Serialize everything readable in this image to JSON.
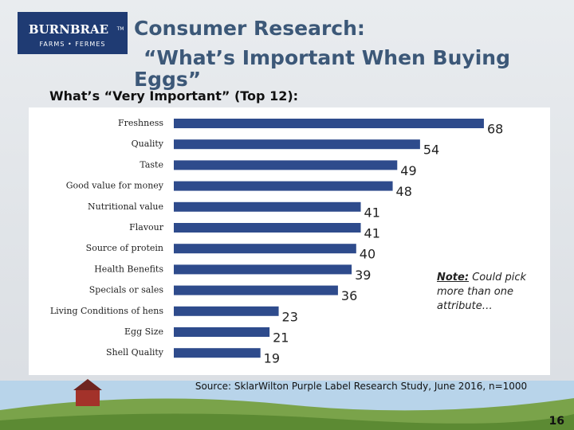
{
  "logo": {
    "name": "BURNBRAE",
    "mark": "TM",
    "tagline": "FARMS • FERMES"
  },
  "page_number": 16,
  "chart_data": {
    "type": "bar",
    "orientation": "horizontal",
    "title": [
      "Consumer Research:",
      "“What’s Important When Buying",
      "Eggs”"
    ],
    "subtitle": "What’s “Very Important” (Top 12):",
    "categories": [
      "Freshness",
      "Quality",
      "Taste",
      "Good value for money",
      "Nutritional value",
      "Flavour",
      "Source of protein",
      "Health Benefits",
      "Specials or sales",
      "Living Conditions of hens",
      "Egg Size",
      "Shell Quality"
    ],
    "values": [
      68,
      54,
      49,
      48,
      41,
      41,
      40,
      39,
      36,
      23,
      21,
      19
    ],
    "color": "#2e4b8c",
    "annotation": {
      "label": "Note:",
      "text": "Could pick more than one attribute…"
    },
    "source": "Source: SklarWilton Purple Label Research Study, June 2016, n=1000"
  }
}
